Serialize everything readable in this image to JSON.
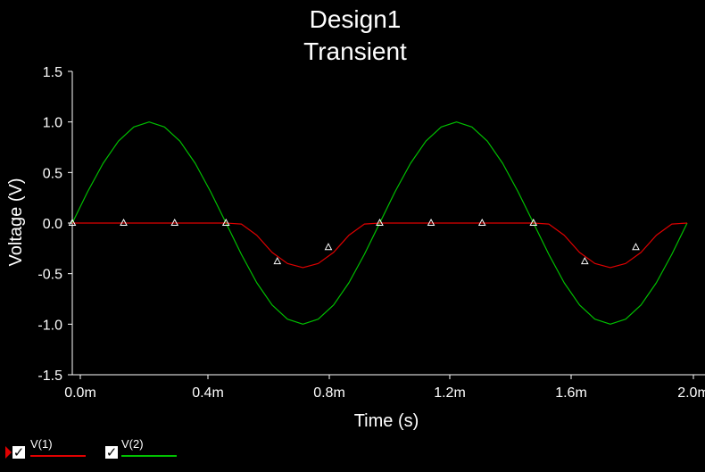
{
  "chart_data": {
    "type": "line",
    "title": "Design1",
    "subtitle": "Transient",
    "xlabel": "Time (s)",
    "ylabel": "Voltage (V)",
    "xlim": [
      0,
      0.002
    ],
    "ylim": [
      -1.5,
      1.5
    ],
    "x_ticks": [
      "0.0m",
      "0.4m",
      "0.8m",
      "1.2m",
      "1.6m",
      "2.0m"
    ],
    "y_ticks": [
      "1.5",
      "1.0",
      "0.5",
      "0.0",
      "-0.5",
      "-1.0",
      "-1.5"
    ],
    "grid": false,
    "series": [
      {
        "name": "V(2)",
        "color": "#00c000",
        "x": [
          0,
          5e-05,
          0.0001,
          0.00015,
          0.0002,
          0.00025,
          0.0003,
          0.00035,
          0.0004,
          0.00045,
          0.0005,
          0.00055,
          0.0006,
          0.00065,
          0.0007,
          0.00075,
          0.0008,
          0.00085,
          0.0009,
          0.00095,
          0.001,
          0.00105,
          0.0011,
          0.00115,
          0.0012,
          0.00125,
          0.0013,
          0.00135,
          0.0014,
          0.00145,
          0.0015,
          0.00155,
          0.0016,
          0.00165,
          0.0017,
          0.00175,
          0.0018,
          0.00185,
          0.0019,
          0.00195,
          0.002
        ],
        "y": [
          0,
          0.31,
          0.59,
          0.81,
          0.95,
          1.0,
          0.95,
          0.81,
          0.59,
          0.31,
          0,
          -0.31,
          -0.59,
          -0.81,
          -0.95,
          -1.0,
          -0.95,
          -0.81,
          -0.59,
          -0.31,
          0,
          0.31,
          0.59,
          0.81,
          0.95,
          1.0,
          0.95,
          0.81,
          0.59,
          0.31,
          0,
          -0.31,
          -0.59,
          -0.81,
          -0.95,
          -1.0,
          -0.95,
          -0.81,
          -0.59,
          -0.31,
          0
        ]
      },
      {
        "name": "V(1)",
        "color": "#e00000",
        "x": [
          0,
          5e-05,
          0.0001,
          0.00015,
          0.0002,
          0.00025,
          0.0003,
          0.00035,
          0.0004,
          0.00045,
          0.0005,
          0.00055,
          0.0006,
          0.00065,
          0.0007,
          0.00075,
          0.0008,
          0.00085,
          0.0009,
          0.00095,
          0.001,
          0.00105,
          0.0011,
          0.00115,
          0.0012,
          0.00125,
          0.0013,
          0.00135,
          0.0014,
          0.00145,
          0.0015,
          0.00155,
          0.0016,
          0.00165,
          0.0017,
          0.00175,
          0.0018,
          0.00185,
          0.0019,
          0.00195,
          0.002
        ],
        "y": [
          0,
          0,
          0,
          0,
          0,
          0,
          0,
          0,
          0,
          0,
          0,
          -0.01,
          -0.12,
          -0.29,
          -0.4,
          -0.44,
          -0.4,
          -0.29,
          -0.12,
          -0.01,
          0,
          0,
          0,
          0,
          0,
          0,
          0,
          0,
          0,
          0,
          0,
          -0.01,
          -0.12,
          -0.29,
          -0.4,
          -0.44,
          -0.4,
          -0.29,
          -0.12,
          -0.01,
          0
        ],
        "markers": {
          "x": [
            0,
            0.000167,
            0.000333,
            0.0005,
            0.000667,
            0.000833,
            0.001,
            0.001167,
            0.001333,
            0.0015,
            0.001667,
            0.001833
          ],
          "y": [
            0,
            0,
            0,
            0,
            -0.38,
            -0.24,
            0,
            0,
            0,
            0,
            -0.38,
            -0.24
          ]
        }
      }
    ],
    "legend": [
      {
        "name": "V(1)",
        "color": "#e00000",
        "checked": true
      },
      {
        "name": "V(2)",
        "color": "#00c000",
        "checked": true
      }
    ],
    "legend_position": "bottom-left"
  }
}
